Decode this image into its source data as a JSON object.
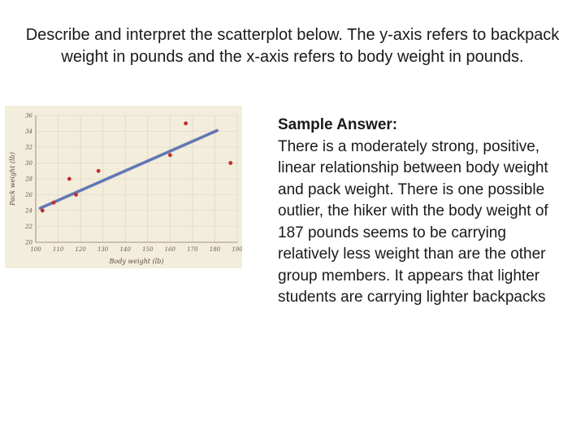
{
  "question": "Describe and interpret the scatterplot below.  The y-axis refers to backpack weight in pounds and the x-axis refers to body weight in pounds.",
  "answer": {
    "heading": "Sample Answer:",
    "body": "There is a moderately strong, positive, linear relationship between body weight and pack weight. There is one possible outlier, the hiker with the body weight of 187 pounds seems to be carrying relatively less weight than are the other group members. It appears that lighter students are carrying lighter backpacks"
  },
  "colors": {
    "plot_background": "#f3eddc",
    "grid": "#d9cfc3",
    "points": "#c0302a",
    "fit_line": "#5b73b8"
  },
  "chart_data": {
    "type": "scatter",
    "title": "",
    "xlabel": "Body weight (lb)",
    "ylabel": "Pack weight (lb)",
    "xlim": [
      100,
      190
    ],
    "ylim": [
      20,
      36
    ],
    "xticks": [
      100,
      110,
      120,
      130,
      140,
      150,
      160,
      170,
      180,
      190
    ],
    "yticks": [
      20,
      22,
      24,
      26,
      28,
      30,
      32,
      34,
      36
    ],
    "x_tick_labels": [
      "100",
      "110",
      "120",
      "130",
      "140",
      "150",
      "160",
      "170",
      "180",
      "190"
    ],
    "y_tick_labels": [
      "20",
      "22",
      "24",
      "26",
      "28",
      "30",
      "32",
      "34",
      "36"
    ],
    "grid": true,
    "points": [
      {
        "x": 103,
        "y": 24
      },
      {
        "x": 108,
        "y": 25
      },
      {
        "x": 115,
        "y": 28
      },
      {
        "x": 118,
        "y": 26
      },
      {
        "x": 128,
        "y": 29
      },
      {
        "x": 160,
        "y": 31
      },
      {
        "x": 167,
        "y": 35
      },
      {
        "x": 187,
        "y": 30
      }
    ],
    "fit_line": {
      "x": [
        102,
        181
      ],
      "y": [
        24.3,
        34.1
      ]
    }
  }
}
